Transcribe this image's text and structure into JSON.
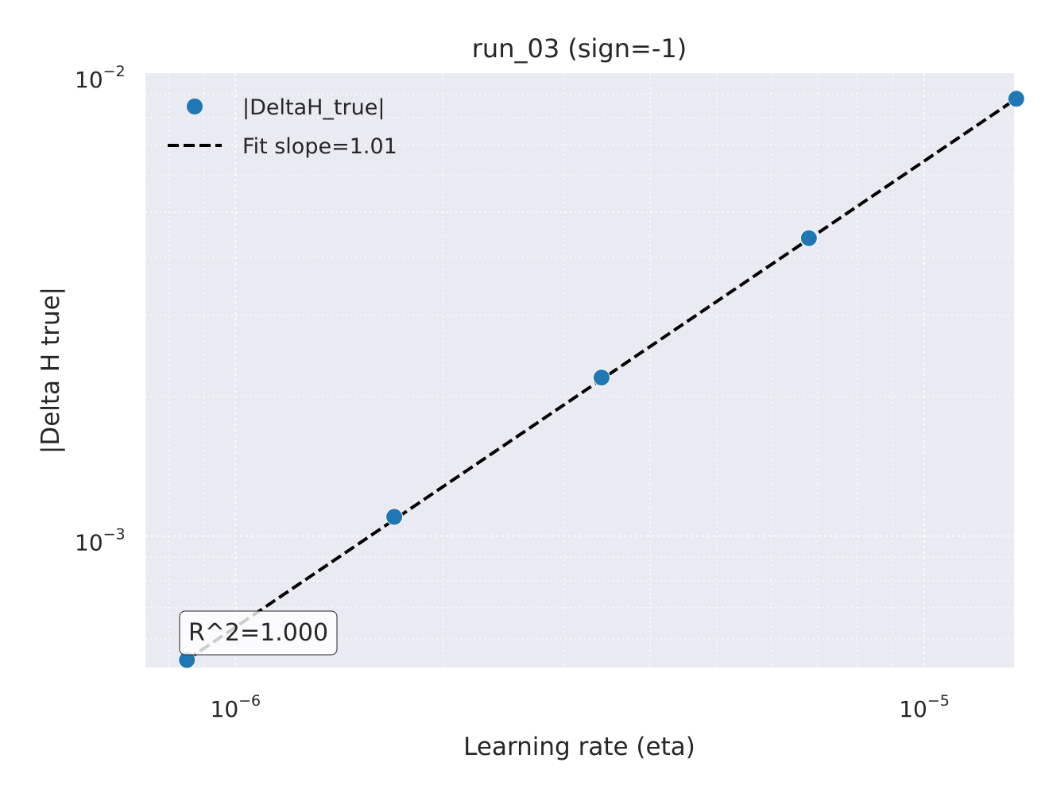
{
  "chart_data": {
    "type": "scatter",
    "title": "run_03 (sign=-1)",
    "xlabel": "Learning rate (eta)",
    "ylabel": "|Delta H true|",
    "xscale": "log",
    "yscale": "log",
    "xlim": [
      7.4e-07,
      1.35e-05
    ],
    "ylim": [
      0.00052,
      0.01
    ],
    "grid": true,
    "legend_position": "upper-left",
    "x_ticks": [
      {
        "value": 1e-06,
        "base": "10",
        "exp": "−6"
      },
      {
        "value": 1e-05,
        "base": "10",
        "exp": "−5"
      }
    ],
    "y_ticks": [
      {
        "value": 0.001,
        "base": "10",
        "exp": "−3"
      },
      {
        "value": 0.01,
        "base": "10",
        "exp": "−2"
      }
    ],
    "series": [
      {
        "name": "|DeltaH_true|",
        "kind": "scatter",
        "color": "#1f77b4",
        "x": [
          8.5e-07,
          1.7e-06,
          3.4e-06,
          6.8e-06,
          1.36e-05
        ],
        "y": [
          0.00054,
          0.0011,
          0.0022,
          0.0044,
          0.0088
        ]
      },
      {
        "name": "Fit slope=1.01",
        "kind": "line",
        "color": "#000000",
        "dash": "dashed",
        "x": [
          8.5e-07,
          1.36e-05
        ],
        "y": [
          0.00054,
          0.0088
        ]
      }
    ],
    "annotation": "R^2=1.000"
  }
}
